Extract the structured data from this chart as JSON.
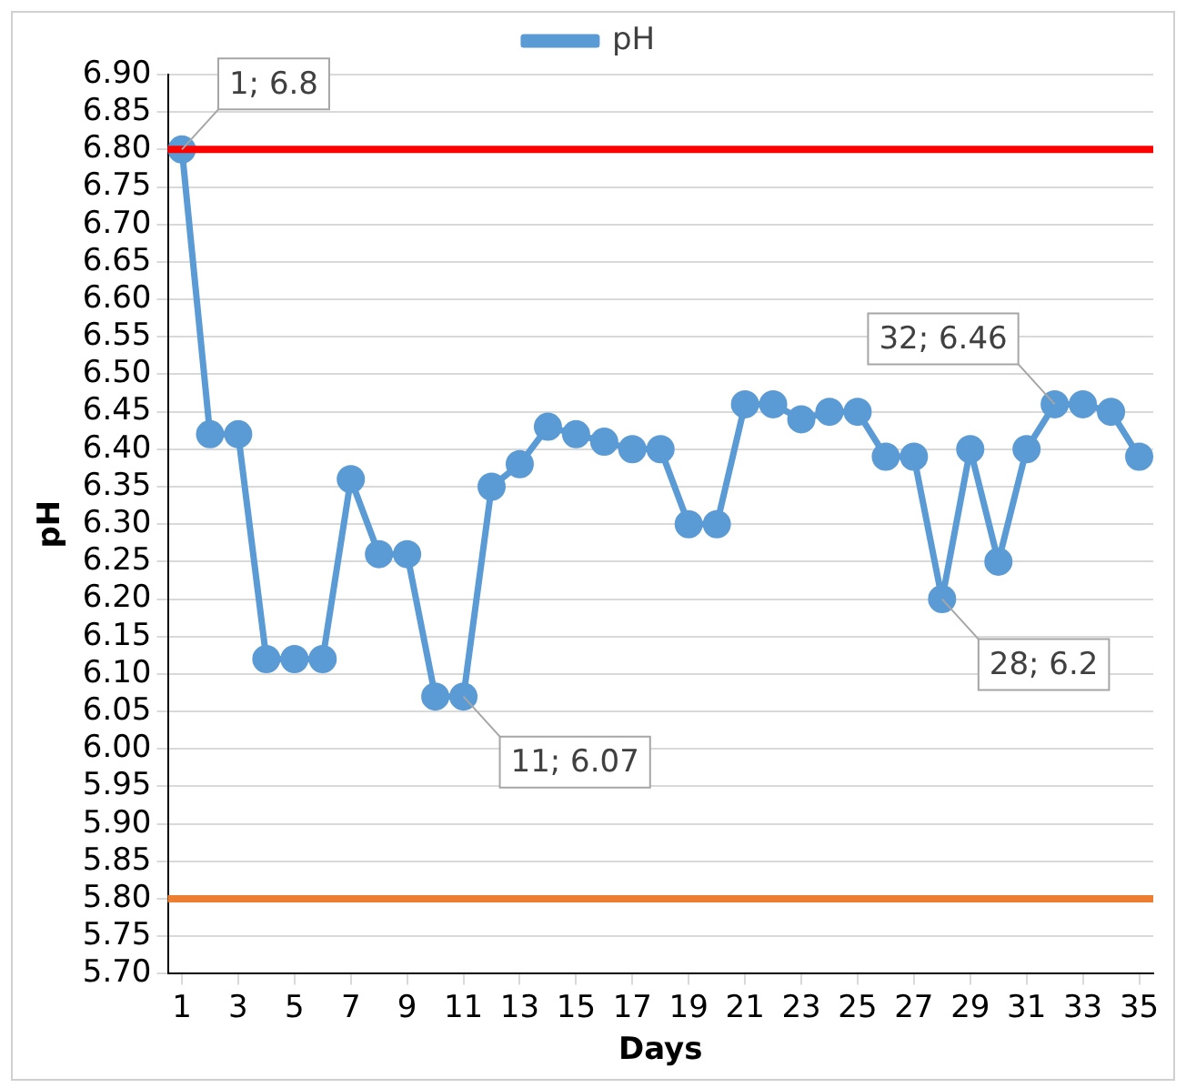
{
  "chart_data": {
    "type": "line",
    "xlabel": "Days",
    "ylabel": "pH",
    "x": [
      1,
      2,
      3,
      4,
      5,
      6,
      7,
      8,
      9,
      10,
      11,
      12,
      13,
      14,
      15,
      16,
      17,
      18,
      19,
      20,
      21,
      22,
      23,
      24,
      25,
      26,
      27,
      28,
      29,
      30,
      31,
      32,
      33,
      34,
      35
    ],
    "series": [
      {
        "name": "pH",
        "color": "#5b9bd5",
        "values": [
          6.8,
          6.42,
          6.42,
          6.12,
          6.12,
          6.12,
          6.36,
          6.26,
          6.26,
          6.07,
          6.07,
          6.35,
          6.38,
          6.43,
          6.42,
          6.41,
          6.4,
          6.4,
          6.3,
          6.3,
          6.46,
          6.46,
          6.44,
          6.45,
          6.45,
          6.39,
          6.39,
          6.2,
          6.4,
          6.25,
          6.4,
          6.46,
          6.46,
          6.45,
          6.39
        ]
      }
    ],
    "xlim": [
      0.5,
      35.5
    ],
    "xticks": [
      1,
      3,
      5,
      7,
      9,
      11,
      13,
      15,
      17,
      19,
      21,
      23,
      25,
      27,
      29,
      31,
      33,
      35
    ],
    "ylim": [
      5.7,
      6.9
    ],
    "yticks": [
      {
        "value": 5.7,
        "label": "5.70"
      },
      {
        "value": 5.75,
        "label": "5.75"
      },
      {
        "value": 5.8,
        "label": "5.80"
      },
      {
        "value": 5.85,
        "label": "5.85"
      },
      {
        "value": 5.9,
        "label": "5.90"
      },
      {
        "value": 5.95,
        "label": "5.95"
      },
      {
        "value": 6.0,
        "label": "6.00"
      },
      {
        "value": 6.05,
        "label": "6.05"
      },
      {
        "value": 6.1,
        "label": "6.10"
      },
      {
        "value": 6.15,
        "label": "6.15"
      },
      {
        "value": 6.2,
        "label": "6.20"
      },
      {
        "value": 6.25,
        "label": "6.25"
      },
      {
        "value": 6.3,
        "label": "6.30"
      },
      {
        "value": 6.35,
        "label": "6.35"
      },
      {
        "value": 6.4,
        "label": "6.40"
      },
      {
        "value": 6.45,
        "label": "6.45"
      },
      {
        "value": 6.5,
        "label": "6.50"
      },
      {
        "value": 6.55,
        "label": "6.55"
      },
      {
        "value": 6.6,
        "label": "6.60"
      },
      {
        "value": 6.65,
        "label": "6.65"
      },
      {
        "value": 6.7,
        "label": "6.70"
      },
      {
        "value": 6.75,
        "label": "6.75"
      },
      {
        "value": 6.8,
        "label": "6.80"
      },
      {
        "value": 6.85,
        "label": "6.85"
      },
      {
        "value": 6.9,
        "label": "6.90"
      }
    ],
    "ref_lines": [
      {
        "axis": "y",
        "value": 6.8,
        "color": "#ff0000"
      },
      {
        "axis": "y",
        "value": 5.8,
        "color": "#ed7d31"
      }
    ],
    "annotations": [
      {
        "text": "1; 6.8",
        "x": 1,
        "y": 6.8
      },
      {
        "text": "11; 6.07",
        "x": 11,
        "y": 6.07
      },
      {
        "text": "28; 6.2",
        "x": 28,
        "y": 6.2
      },
      {
        "text": "32; 6.46",
        "x": 32,
        "y": 6.46
      }
    ],
    "grid": "y",
    "legend": "top",
    "marker": "circle",
    "line_style": "solid"
  }
}
